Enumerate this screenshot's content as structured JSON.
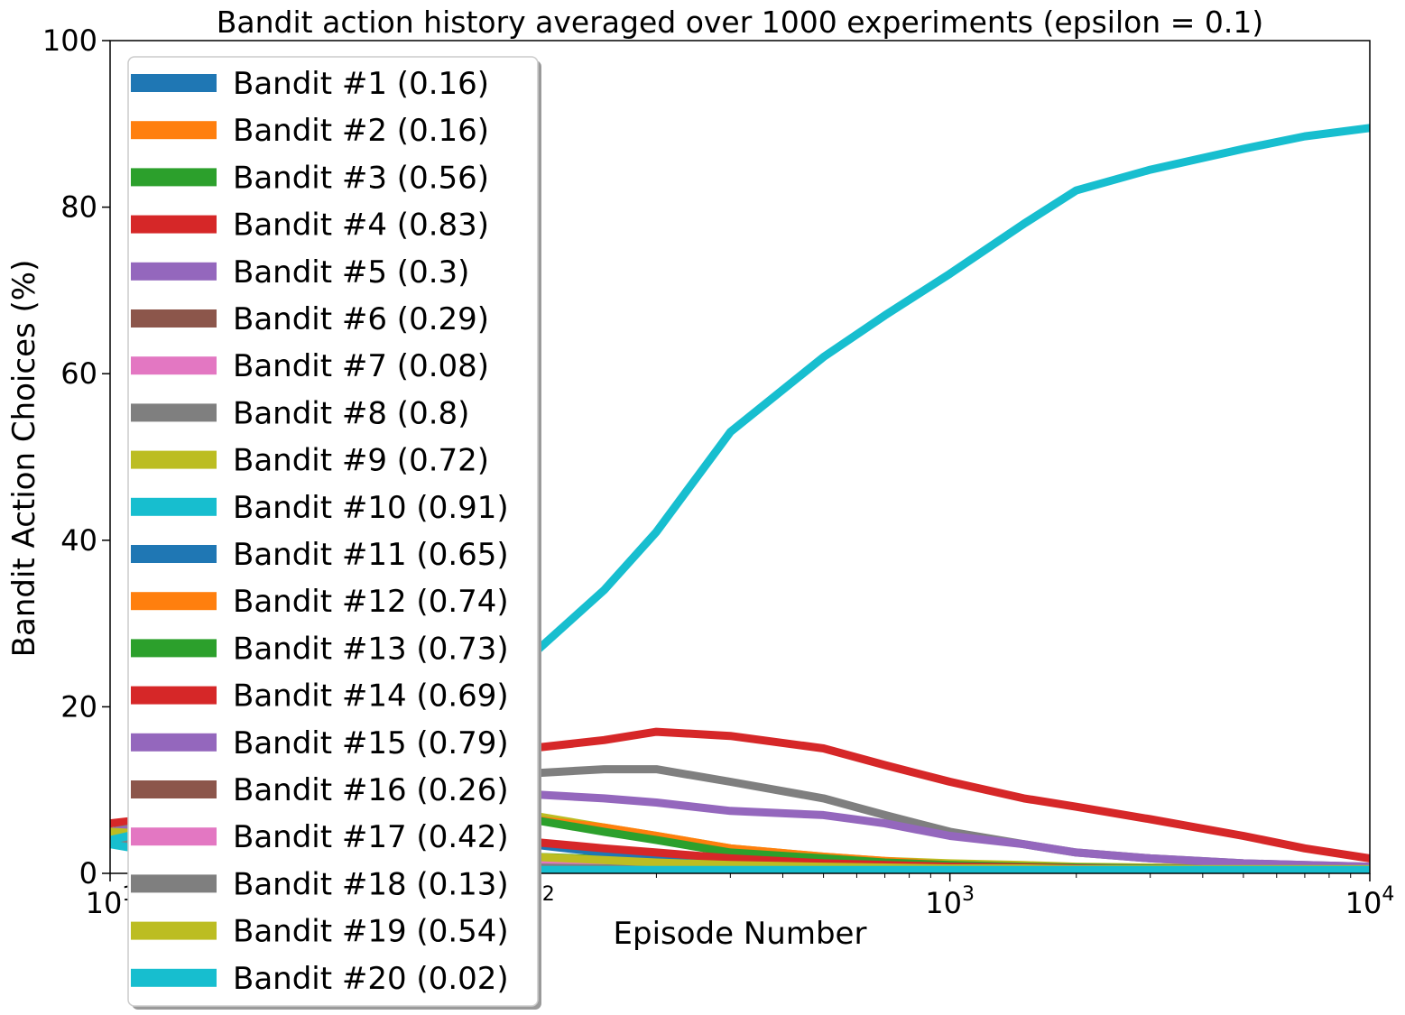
{
  "chart_data": {
    "type": "line",
    "title": "Bandit action history averaged over 1000 experiments (epsilon = 0.1)",
    "xlabel": "Episode Number",
    "ylabel": "Bandit Action Choices (%)",
    "xscale": "log",
    "xlim": [
      10,
      10000
    ],
    "ylim": [
      0,
      100
    ],
    "x_ticks": [
      {
        "value": 10,
        "base": "10",
        "exp": "1"
      },
      {
        "value": 100,
        "base": "10",
        "exp": "2"
      },
      {
        "value": 1000,
        "base": "10",
        "exp": "3"
      },
      {
        "value": 10000,
        "base": "10",
        "exp": "4"
      }
    ],
    "y_ticks": [
      0,
      20,
      40,
      60,
      80,
      100
    ],
    "legend_position": "upper-left",
    "x": [
      10,
      15,
      20,
      30,
      50,
      70,
      100,
      150,
      200,
      300,
      500,
      700,
      1000,
      1500,
      2000,
      3000,
      5000,
      7000,
      10000
    ],
    "series": [
      {
        "name": "Bandit #1 (0.16)",
        "color": "#1f77b4",
        "values": [
          4.5,
          2.5,
          1.8,
          1.3,
          1.0,
          0.9,
          0.8,
          0.7,
          0.6,
          0.5,
          0.5,
          0.5,
          0.5,
          0.5,
          0.5,
          0.5,
          0.5,
          0.5,
          0.5
        ]
      },
      {
        "name": "Bandit #2 (0.16)",
        "color": "#ff7f0e",
        "values": [
          5.0,
          2.8,
          2.0,
          1.4,
          1.0,
          0.9,
          0.8,
          0.7,
          0.6,
          0.5,
          0.5,
          0.5,
          0.5,
          0.5,
          0.5,
          0.5,
          0.5,
          0.5,
          0.5
        ]
      },
      {
        "name": "Bandit #3 (0.56)",
        "color": "#2ca02c",
        "values": [
          5.0,
          4.0,
          3.5,
          3.0,
          2.5,
          2.2,
          2.0,
          1.7,
          1.4,
          1.0,
          0.8,
          0.7,
          0.6,
          0.6,
          0.5,
          0.5,
          0.5,
          0.5,
          0.5
        ]
      },
      {
        "name": "Bandit #4 (0.83)",
        "color": "#d62728",
        "values": [
          6.0,
          7.0,
          7.5,
          8.0,
          10.0,
          12.0,
          15.0,
          16.0,
          17.0,
          16.5,
          15.0,
          13.0,
          11.0,
          9.0,
          8.0,
          6.5,
          4.5,
          3.0,
          1.8
        ]
      },
      {
        "name": "Bandit #5 (0.3)",
        "color": "#9467bd",
        "values": [
          4.0,
          3.0,
          2.5,
          2.0,
          1.5,
          1.2,
          1.0,
          0.9,
          0.8,
          0.7,
          0.6,
          0.6,
          0.5,
          0.5,
          0.5,
          0.5,
          0.5,
          0.5,
          0.5
        ]
      },
      {
        "name": "Bandit #6 (0.29)",
        "color": "#8c564b",
        "values": [
          4.0,
          3.0,
          2.4,
          1.8,
          1.4,
          1.2,
          1.0,
          0.9,
          0.8,
          0.7,
          0.6,
          0.6,
          0.5,
          0.5,
          0.5,
          0.5,
          0.5,
          0.5,
          0.5
        ]
      },
      {
        "name": "Bandit #7 (0.08)",
        "color": "#e377c2",
        "values": [
          4.0,
          2.5,
          1.8,
          1.2,
          0.9,
          0.8,
          0.7,
          0.6,
          0.6,
          0.5,
          0.5,
          0.5,
          0.5,
          0.5,
          0.5,
          0.5,
          0.5,
          0.5,
          0.5
        ]
      },
      {
        "name": "Bandit #8 (0.8)",
        "color": "#7f7f7f",
        "values": [
          5.0,
          6.5,
          7.5,
          8.5,
          10.0,
          11.0,
          12.0,
          12.5,
          12.5,
          11.0,
          9.0,
          7.0,
          5.0,
          3.5,
          2.5,
          1.8,
          1.2,
          1.0,
          0.8
        ]
      },
      {
        "name": "Bandit #9 (0.72)",
        "color": "#bcbd22",
        "values": [
          5.0,
          6.0,
          6.5,
          7.0,
          7.5,
          8.0,
          7.0,
          5.5,
          4.5,
          3.0,
          2.0,
          1.5,
          1.2,
          1.0,
          0.8,
          0.7,
          0.6,
          0.6,
          0.5
        ]
      },
      {
        "name": "Bandit #10 (0.91)",
        "color": "#17becf",
        "values": [
          4.0,
          6.0,
          8.0,
          11.0,
          15.5,
          20.0,
          26.0,
          34.0,
          41.0,
          53.0,
          62.0,
          67.0,
          72.0,
          78.0,
          82.0,
          84.5,
          87.0,
          88.5,
          89.5
        ]
      },
      {
        "name": "Bandit #11 (0.65)",
        "color": "#1f77b4",
        "values": [
          5.0,
          5.5,
          5.5,
          5.5,
          5.0,
          4.5,
          3.5,
          2.5,
          2.0,
          1.5,
          1.0,
          0.8,
          0.7,
          0.6,
          0.6,
          0.5,
          0.5,
          0.5,
          0.5
        ]
      },
      {
        "name": "Bandit #12 (0.74)",
        "color": "#ff7f0e",
        "values": [
          5.0,
          5.5,
          6.0,
          6.5,
          7.0,
          7.0,
          6.5,
          5.5,
          4.5,
          3.0,
          2.0,
          1.5,
          1.0,
          0.8,
          0.7,
          0.6,
          0.5,
          0.5,
          0.5
        ]
      },
      {
        "name": "Bandit #13 (0.73)",
        "color": "#2ca02c",
        "values": [
          5.0,
          6.0,
          6.5,
          7.0,
          7.5,
          7.0,
          6.5,
          5.0,
          4.0,
          2.5,
          1.8,
          1.3,
          1.0,
          0.8,
          0.7,
          0.6,
          0.5,
          0.5,
          0.5
        ]
      },
      {
        "name": "Bandit #14 (0.69)",
        "color": "#d62728",
        "values": [
          5.0,
          5.5,
          6.0,
          6.0,
          5.5,
          4.5,
          3.8,
          3.0,
          2.5,
          1.8,
          1.2,
          1.0,
          0.8,
          0.7,
          0.6,
          0.5,
          0.5,
          0.5,
          0.5
        ]
      },
      {
        "name": "Bandit #15 (0.79)",
        "color": "#9467bd",
        "values": [
          5.0,
          6.0,
          6.5,
          7.5,
          8.5,
          9.5,
          9.5,
          9.0,
          8.5,
          7.5,
          7.0,
          6.0,
          4.5,
          3.5,
          2.5,
          1.8,
          1.2,
          1.0,
          0.8
        ]
      },
      {
        "name": "Bandit #16 (0.26)",
        "color": "#8c564b",
        "values": [
          4.0,
          2.8,
          2.2,
          1.6,
          1.2,
          1.0,
          0.9,
          0.8,
          0.7,
          0.6,
          0.6,
          0.5,
          0.5,
          0.5,
          0.5,
          0.5,
          0.5,
          0.5,
          0.5
        ]
      },
      {
        "name": "Bandit #17 (0.42)",
        "color": "#e377c2",
        "values": [
          4.5,
          3.5,
          3.0,
          2.5,
          2.0,
          1.6,
          1.3,
          1.0,
          0.9,
          0.8,
          0.7,
          0.6,
          0.6,
          0.5,
          0.5,
          0.5,
          0.5,
          0.5,
          0.5
        ]
      },
      {
        "name": "Bandit #18 (0.13)",
        "color": "#7f7f7f",
        "values": [
          4.0,
          2.5,
          1.8,
          1.3,
          1.0,
          0.8,
          0.7,
          0.6,
          0.6,
          0.5,
          0.5,
          0.5,
          0.5,
          0.5,
          0.5,
          0.5,
          0.5,
          0.5,
          0.5
        ]
      },
      {
        "name": "Bandit #19 (0.54)",
        "color": "#bcbd22",
        "values": [
          5.0,
          4.5,
          4.0,
          3.5,
          3.0,
          2.5,
          2.0,
          1.6,
          1.3,
          1.0,
          0.8,
          0.7,
          0.6,
          0.6,
          0.5,
          0.5,
          0.5,
          0.5,
          0.5
        ]
      },
      {
        "name": "Bandit #20 (0.02)",
        "color": "#17becf",
        "values": [
          3.5,
          2.0,
          1.3,
          0.8,
          0.5,
          0.5,
          0.4,
          0.4,
          0.4,
          0.4,
          0.4,
          0.4,
          0.4,
          0.4,
          0.4,
          0.4,
          0.4,
          0.4,
          0.4
        ]
      }
    ]
  }
}
